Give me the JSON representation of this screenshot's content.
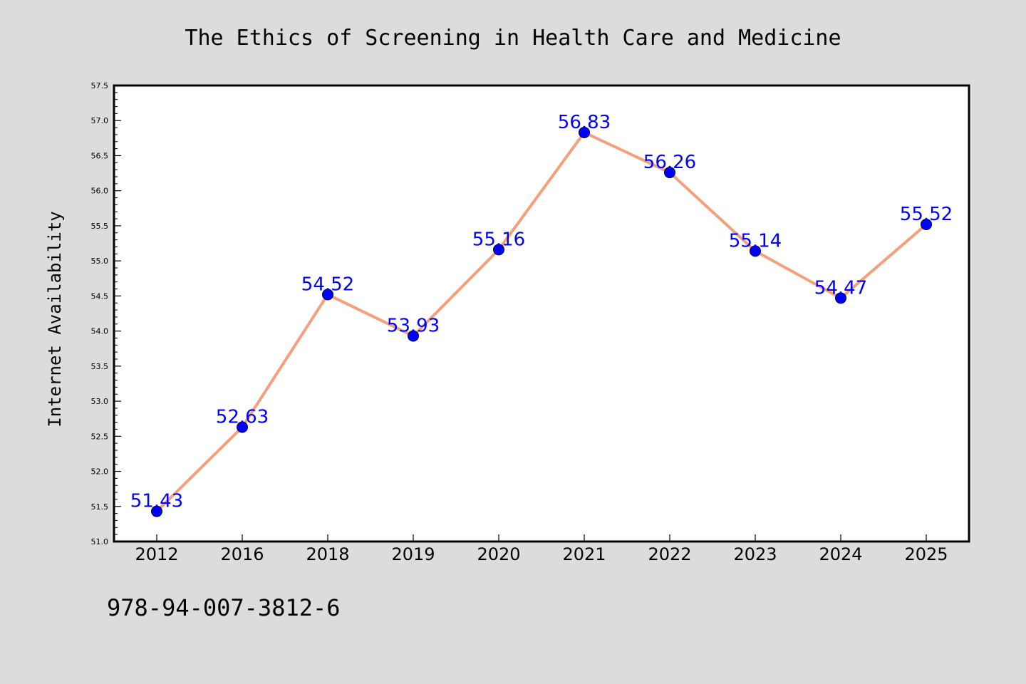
{
  "colors": {
    "background": "#dcdcdc",
    "plot_background": "#ffffff",
    "line": "#f4a07c",
    "marker": "#0000ff",
    "data_label": "#0000ff"
  },
  "footer_text": "978-94-007-3812-6",
  "chart_data": {
    "type": "line",
    "title": "The Ethics of Screening in Health Care and Medicine",
    "xlabel": "",
    "ylabel": "Internet Availability",
    "categories": [
      "2012",
      "2016",
      "2018",
      "2019",
      "2020",
      "2021",
      "2022",
      "2023",
      "2024",
      "2025"
    ],
    "values": [
      51.43,
      52.63,
      54.52,
      53.93,
      55.16,
      56.83,
      56.26,
      55.14,
      54.47,
      55.52
    ],
    "data_labels": [
      "51.43",
      "52.63",
      "54.52",
      "53.93",
      "55.16",
      "56.83",
      "56.26",
      "55.14",
      "54.47",
      "55.52"
    ],
    "ylim": [
      51.0,
      57.5
    ],
    "yticks": [
      "51.0",
      "51.5",
      "52.0",
      "52.5",
      "53.0",
      "53.5",
      "54.0",
      "54.5",
      "55.0",
      "55.5",
      "56.0",
      "56.5",
      "57.0",
      "57.5"
    ],
    "grid": false,
    "legend": "none"
  }
}
